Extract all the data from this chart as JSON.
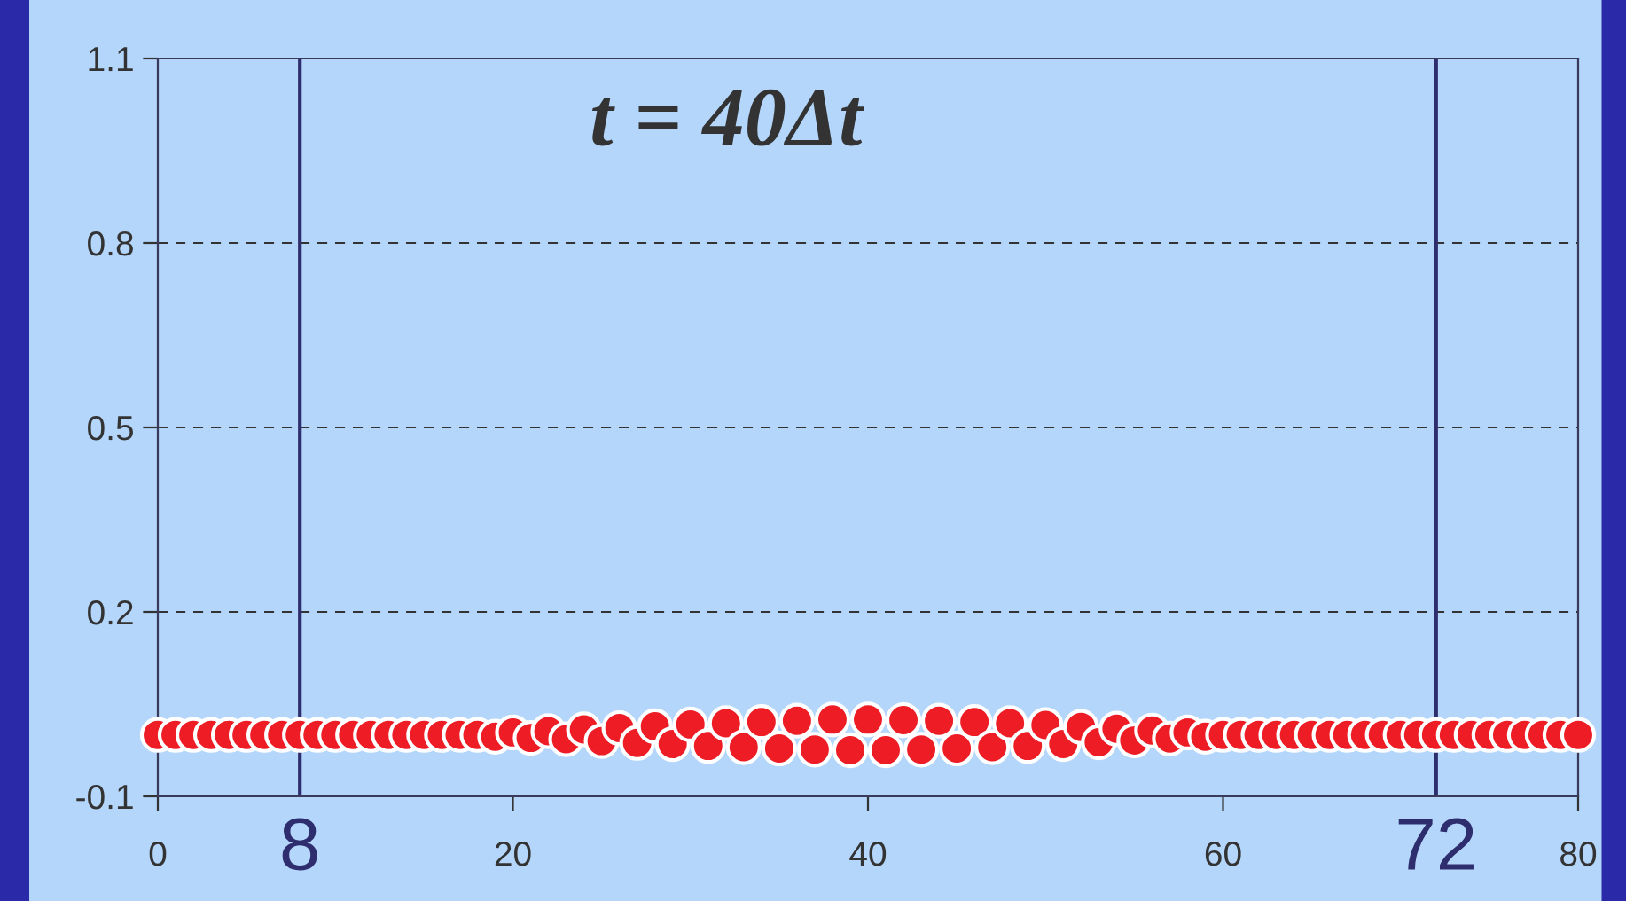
{
  "chart_data": {
    "type": "scatter",
    "title": "t = 40Δt",
    "x": [
      0,
      1,
      2,
      3,
      4,
      5,
      6,
      7,
      8,
      9,
      10,
      11,
      12,
      13,
      14,
      15,
      16,
      17,
      18,
      19,
      20,
      21,
      22,
      23,
      24,
      25,
      26,
      27,
      28,
      29,
      30,
      31,
      32,
      33,
      34,
      35,
      36,
      37,
      38,
      39,
      40,
      41,
      42,
      43,
      44,
      45,
      46,
      47,
      48,
      49,
      50,
      51,
      52,
      53,
      54,
      55,
      56,
      57,
      58,
      59,
      60,
      61,
      62,
      63,
      64,
      65,
      66,
      67,
      68,
      69,
      70,
      71,
      72,
      73,
      74,
      75,
      76,
      77,
      78,
      79,
      80
    ],
    "series": [
      {
        "color": "#ee1c25",
        "values": [
          0,
          0,
          0,
          0,
          0,
          0,
          0,
          0,
          0,
          0,
          0,
          0,
          0,
          0,
          0,
          0,
          0,
          0,
          0,
          -0.003,
          0.004,
          -0.005,
          0.006,
          -0.007,
          0.009,
          -0.01,
          0.011,
          -0.013,
          0.014,
          -0.015,
          0.017,
          -0.018,
          0.019,
          -0.02,
          0.021,
          -0.022,
          0.023,
          -0.024,
          0.025,
          -0.025,
          0.025,
          -0.025,
          0.024,
          -0.024,
          0.023,
          -0.022,
          0.021,
          -0.02,
          0.019,
          -0.018,
          0.016,
          -0.015,
          0.013,
          -0.012,
          0.01,
          -0.009,
          0.007,
          -0.006,
          0.004,
          -0.003,
          0,
          0,
          0,
          0,
          0,
          0,
          0,
          0,
          0,
          0,
          0,
          0,
          0,
          0,
          0,
          0,
          0,
          0,
          0,
          0,
          0
        ]
      }
    ],
    "xlim": [
      0,
      80
    ],
    "xticks": [
      0,
      20,
      40,
      60,
      80
    ],
    "ylim": [
      -0.1,
      1.1
    ],
    "yticks": [
      -0.1,
      0.2,
      0.5,
      0.8,
      1.1
    ],
    "grid": "y",
    "marker": "circle",
    "ref_lines": [
      {
        "axis": "x",
        "value": 8,
        "label": "8",
        "color": "#2e2e6e"
      },
      {
        "axis": "x",
        "value": 72,
        "label": "72",
        "color": "#2e2e6e"
      }
    ]
  }
}
